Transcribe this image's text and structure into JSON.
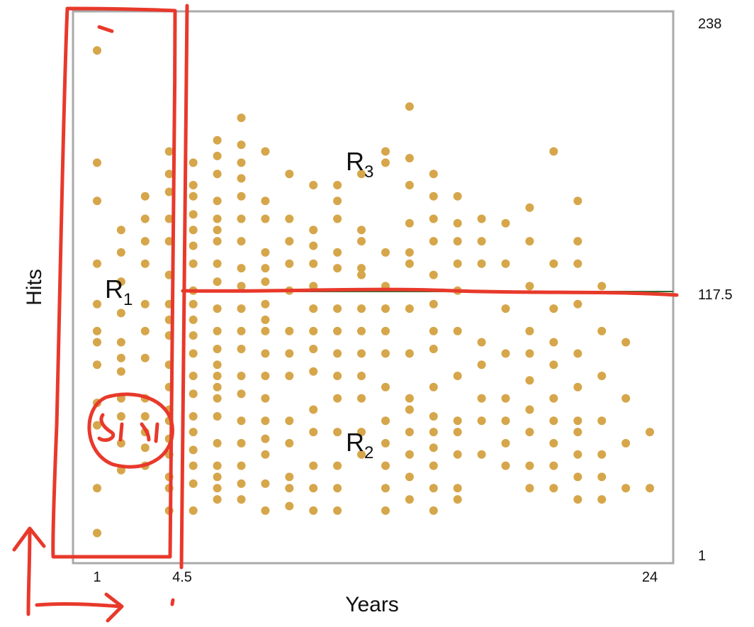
{
  "chart_data": {
    "type": "scatter",
    "title": "",
    "xlabel": "Years",
    "ylabel": "Hits",
    "xlim": [
      1,
      24
    ],
    "ylim": [
      1,
      238
    ],
    "x_ticks": [
      "1",
      "4.5",
      "24"
    ],
    "y_ticks": [
      "1",
      "117.5",
      "238"
    ],
    "splits": {
      "x": 4.5,
      "y": 117.5
    },
    "regions": [
      {
        "label": "R",
        "sub": "1"
      },
      {
        "label": "R",
        "sub": "2"
      },
      {
        "label": "R",
        "sub": "3"
      }
    ],
    "point_color": "#d6a64a",
    "split_line_color": "#2e6b2e",
    "annotation_color": "#e8392b",
    "points": [
      [
        1,
        225
      ],
      [
        1,
        30
      ],
      [
        1,
        10
      ],
      [
        2,
        145
      ],
      [
        2,
        122
      ],
      [
        2,
        108
      ],
      [
        2,
        88
      ],
      [
        2,
        82
      ],
      [
        2,
        62
      ],
      [
        2,
        50
      ],
      [
        1,
        175
      ],
      [
        1,
        158
      ],
      [
        2,
        135
      ],
      [
        1,
        130
      ],
      [
        2,
        95
      ],
      [
        2,
        70
      ],
      [
        1,
        100
      ],
      [
        1,
        112
      ],
      [
        1,
        95
      ],
      [
        1,
        85
      ],
      [
        1,
        68
      ],
      [
        1,
        58
      ],
      [
        3,
        160
      ],
      [
        3,
        150
      ],
      [
        3,
        140
      ],
      [
        3,
        130
      ],
      [
        3,
        112
      ],
      [
        3,
        100
      ],
      [
        3,
        88
      ],
      [
        3,
        70
      ],
      [
        3,
        62
      ],
      [
        3,
        55
      ],
      [
        3,
        48
      ],
      [
        3,
        40
      ],
      [
        2,
        38
      ],
      [
        4,
        180
      ],
      [
        4,
        170
      ],
      [
        4,
        162
      ],
      [
        4,
        150
      ],
      [
        4,
        140
      ],
      [
        4,
        125
      ],
      [
        4,
        112
      ],
      [
        4,
        105
      ],
      [
        4,
        98
      ],
      [
        4,
        85
      ],
      [
        4,
        75
      ],
      [
        4,
        65
      ],
      [
        4,
        60
      ],
      [
        4,
        52
      ],
      [
        4,
        45
      ],
      [
        4,
        35
      ],
      [
        4,
        30
      ],
      [
        4,
        20
      ],
      [
        5,
        175
      ],
      [
        5,
        165
      ],
      [
        5,
        160
      ],
      [
        5,
        152
      ],
      [
        5,
        145
      ],
      [
        5,
        138
      ],
      [
        5,
        130
      ],
      [
        5,
        118
      ],
      [
        5,
        112
      ],
      [
        5,
        105
      ],
      [
        5,
        98
      ],
      [
        5,
        90
      ],
      [
        5,
        80
      ],
      [
        5,
        72
      ],
      [
        5,
        62
      ],
      [
        5,
        55
      ],
      [
        5,
        47
      ],
      [
        5,
        40
      ],
      [
        5,
        32
      ],
      [
        5,
        20
      ],
      [
        6,
        185
      ],
      [
        6,
        178
      ],
      [
        6,
        170
      ],
      [
        6,
        158
      ],
      [
        6,
        150
      ],
      [
        6,
        145
      ],
      [
        6,
        140
      ],
      [
        6,
        130
      ],
      [
        6,
        122
      ],
      [
        6,
        110
      ],
      [
        6,
        100
      ],
      [
        6,
        92
      ],
      [
        6,
        85
      ],
      [
        6,
        80
      ],
      [
        6,
        75
      ],
      [
        6,
        70
      ],
      [
        6,
        62
      ],
      [
        6,
        50
      ],
      [
        6,
        40
      ],
      [
        6,
        35
      ],
      [
        6,
        30
      ],
      [
        6,
        25
      ],
      [
        7,
        195
      ],
      [
        7,
        183
      ],
      [
        7,
        175
      ],
      [
        7,
        168
      ],
      [
        7,
        160
      ],
      [
        7,
        150
      ],
      [
        7,
        140
      ],
      [
        7,
        128
      ],
      [
        7,
        120
      ],
      [
        7,
        110
      ],
      [
        7,
        100
      ],
      [
        7,
        92
      ],
      [
        7,
        80
      ],
      [
        7,
        72
      ],
      [
        7,
        60
      ],
      [
        7,
        50
      ],
      [
        7,
        40
      ],
      [
        7,
        32
      ],
      [
        7,
        25
      ],
      [
        8,
        180
      ],
      [
        8,
        158
      ],
      [
        8,
        150
      ],
      [
        8,
        135
      ],
      [
        8,
        128
      ],
      [
        8,
        122
      ],
      [
        8,
        112
      ],
      [
        8,
        105
      ],
      [
        8,
        100
      ],
      [
        8,
        90
      ],
      [
        8,
        80
      ],
      [
        8,
        70
      ],
      [
        8,
        60
      ],
      [
        8,
        52
      ],
      [
        8,
        45
      ],
      [
        8,
        32
      ],
      [
        8,
        20
      ],
      [
        9,
        170
      ],
      [
        9,
        150
      ],
      [
        9,
        140
      ],
      [
        9,
        130
      ],
      [
        9,
        118
      ],
      [
        9,
        100
      ],
      [
        9,
        90
      ],
      [
        9,
        80
      ],
      [
        9,
        60
      ],
      [
        9,
        50
      ],
      [
        9,
        35
      ],
      [
        9,
        30
      ],
      [
        9,
        22
      ],
      [
        10,
        165
      ],
      [
        10,
        145
      ],
      [
        10,
        138
      ],
      [
        10,
        130
      ],
      [
        10,
        120
      ],
      [
        10,
        110
      ],
      [
        10,
        100
      ],
      [
        10,
        92
      ],
      [
        10,
        82
      ],
      [
        10,
        65
      ],
      [
        10,
        55
      ],
      [
        10,
        40
      ],
      [
        10,
        30
      ],
      [
        10,
        20
      ],
      [
        11,
        165
      ],
      [
        11,
        158
      ],
      [
        11,
        150
      ],
      [
        11,
        135
      ],
      [
        11,
        128
      ],
      [
        11,
        110
      ],
      [
        11,
        100
      ],
      [
        11,
        90
      ],
      [
        11,
        80
      ],
      [
        11,
        70
      ],
      [
        11,
        55
      ],
      [
        11,
        40
      ],
      [
        11,
        30
      ],
      [
        11,
        20
      ],
      [
        12,
        170
      ],
      [
        12,
        145
      ],
      [
        12,
        140
      ],
      [
        12,
        128
      ],
      [
        12,
        125
      ],
      [
        12,
        110
      ],
      [
        12,
        100
      ],
      [
        12,
        90
      ],
      [
        12,
        80
      ],
      [
        12,
        70
      ],
      [
        12,
        55
      ],
      [
        12,
        45
      ],
      [
        13,
        180
      ],
      [
        13,
        175
      ],
      [
        13,
        135
      ],
      [
        13,
        120
      ],
      [
        13,
        110
      ],
      [
        13,
        100
      ],
      [
        13,
        90
      ],
      [
        13,
        75
      ],
      [
        13,
        60
      ],
      [
        13,
        50
      ],
      [
        13,
        40
      ],
      [
        13,
        30
      ],
      [
        13,
        20
      ],
      [
        14,
        200
      ],
      [
        14,
        177
      ],
      [
        14,
        165
      ],
      [
        14,
        148
      ],
      [
        14,
        135
      ],
      [
        14,
        130
      ],
      [
        14,
        110
      ],
      [
        14,
        90
      ],
      [
        14,
        70
      ],
      [
        14,
        65
      ],
      [
        14,
        55
      ],
      [
        14,
        45
      ],
      [
        14,
        35
      ],
      [
        14,
        25
      ],
      [
        15,
        170
      ],
      [
        15,
        160
      ],
      [
        15,
        150
      ],
      [
        15,
        140
      ],
      [
        15,
        125
      ],
      [
        15,
        112
      ],
      [
        15,
        100
      ],
      [
        15,
        92
      ],
      [
        15,
        75
      ],
      [
        15,
        62
      ],
      [
        15,
        55
      ],
      [
        15,
        48
      ],
      [
        15,
        40
      ],
      [
        15,
        30
      ],
      [
        15,
        20
      ],
      [
        16,
        160
      ],
      [
        16,
        148
      ],
      [
        16,
        140
      ],
      [
        16,
        130
      ],
      [
        16,
        118
      ],
      [
        16,
        100
      ],
      [
        16,
        80
      ],
      [
        16,
        60
      ],
      [
        16,
        55
      ],
      [
        16,
        45
      ],
      [
        16,
        30
      ],
      [
        16,
        25
      ],
      [
        17,
        150
      ],
      [
        17,
        140
      ],
      [
        17,
        130
      ],
      [
        17,
        95
      ],
      [
        17,
        85
      ],
      [
        17,
        70
      ],
      [
        17,
        60
      ],
      [
        17,
        45
      ],
      [
        18,
        148
      ],
      [
        18,
        130
      ],
      [
        18,
        110
      ],
      [
        18,
        90
      ],
      [
        18,
        70
      ],
      [
        18,
        60
      ],
      [
        18,
        50
      ],
      [
        18,
        40
      ],
      [
        19,
        155
      ],
      [
        19,
        140
      ],
      [
        19,
        120
      ],
      [
        19,
        100
      ],
      [
        19,
        90
      ],
      [
        19,
        78
      ],
      [
        19,
        65
      ],
      [
        19,
        55
      ],
      [
        19,
        40
      ],
      [
        19,
        30
      ],
      [
        20,
        180
      ],
      [
        20,
        130
      ],
      [
        20,
        110
      ],
      [
        20,
        95
      ],
      [
        20,
        85
      ],
      [
        20,
        70
      ],
      [
        20,
        60
      ],
      [
        20,
        50
      ],
      [
        20,
        40
      ],
      [
        20,
        30
      ],
      [
        21,
        158
      ],
      [
        21,
        140
      ],
      [
        21,
        130
      ],
      [
        21,
        112
      ],
      [
        21,
        90
      ],
      [
        21,
        75
      ],
      [
        21,
        60
      ],
      [
        21,
        55
      ],
      [
        21,
        45
      ],
      [
        21,
        35
      ],
      [
        21,
        25
      ],
      [
        22,
        120
      ],
      [
        22,
        100
      ],
      [
        22,
        80
      ],
      [
        22,
        60
      ],
      [
        22,
        45
      ],
      [
        22,
        35
      ],
      [
        22,
        25
      ],
      [
        23,
        95
      ],
      [
        23,
        70
      ],
      [
        23,
        50
      ],
      [
        23,
        30
      ],
      [
        24,
        55
      ],
      [
        24,
        30
      ]
    ]
  }
}
